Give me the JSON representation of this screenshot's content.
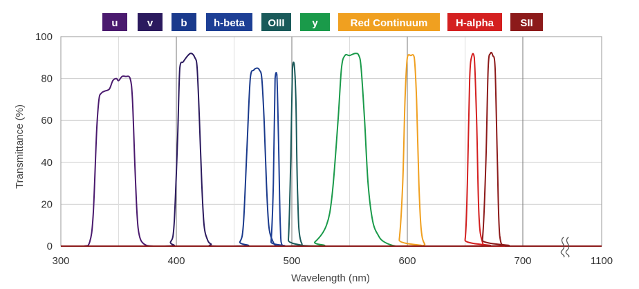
{
  "chart_data": {
    "type": "line",
    "xlabel": "Wavelength (nm)",
    "ylabel": "Transmittance (%)",
    "ylim": [
      0,
      100
    ],
    "x_ticks": [
      300,
      400,
      500,
      600,
      700,
      1100
    ],
    "y_ticks": [
      0,
      20,
      40,
      60,
      80,
      100
    ],
    "axis_break_note": "axis break between 700 and 1100",
    "grid": true,
    "legend_position": "top",
    "series": [
      {
        "name": "u",
        "color": "#4a1a6e",
        "x": [
          300,
          320,
          325,
          328,
          331,
          333,
          335,
          338,
          342,
          345,
          348,
          350,
          353,
          356,
          360,
          362,
          364,
          366,
          368,
          372,
          380,
          400,
          500,
          600,
          700,
          1100
        ],
        "y": [
          0,
          0,
          2,
          15,
          55,
          70,
          73,
          74,
          75,
          79,
          80,
          79,
          81,
          81,
          80,
          70,
          40,
          15,
          5,
          1,
          0,
          0,
          0,
          0,
          0,
          0
        ]
      },
      {
        "name": "v",
        "color": "#2b1a5e",
        "x": [
          300,
          390,
          395,
          398,
          401,
          403,
          406,
          410,
          413,
          416,
          418,
          420,
          422,
          424,
          427,
          430,
          435,
          500,
          600,
          700,
          1100
        ],
        "y": [
          0,
          0,
          2,
          10,
          50,
          85,
          88,
          91,
          92,
          90,
          85,
          60,
          30,
          10,
          3,
          1,
          0,
          0,
          0,
          0,
          0
        ]
      },
      {
        "name": "b",
        "color": "#1a3a8c",
        "x": [
          300,
          450,
          455,
          458,
          461,
          464,
          467,
          470,
          472,
          474,
          476,
          478,
          480,
          483,
          487,
          495,
          600,
          700,
          1100
        ],
        "y": [
          0,
          0,
          2,
          10,
          45,
          80,
          84,
          85,
          84,
          80,
          60,
          30,
          10,
          3,
          0,
          0,
          0,
          0,
          0
        ]
      },
      {
        "name": "h-beta",
        "color": "#1d3f95",
        "x": [
          300,
          480,
          482,
          484,
          485.5,
          487,
          488.5,
          490,
          492,
          500,
          600,
          700,
          1100
        ],
        "y": [
          0,
          0,
          2,
          30,
          80,
          82,
          50,
          10,
          0,
          0,
          0,
          0,
          0
        ]
      },
      {
        "name": "OIII",
        "color": "#1a5a5a",
        "x": [
          300,
          494,
          497,
          499,
          500.5,
          502,
          503.5,
          505,
          508,
          520,
          600,
          700,
          1100
        ],
        "y": [
          0,
          0,
          3,
          40,
          84,
          87,
          70,
          25,
          2,
          0,
          0,
          0,
          0
        ]
      },
      {
        "name": "y",
        "color": "#1a9a4a",
        "x": [
          300,
          510,
          520,
          530,
          535,
          540,
          543,
          546,
          550,
          555,
          558,
          560,
          563,
          566,
          570,
          575,
          580,
          590,
          600,
          700,
          1100
        ],
        "y": [
          0,
          0,
          2,
          10,
          25,
          60,
          85,
          91,
          91,
          92,
          91,
          85,
          60,
          30,
          12,
          5,
          2,
          0,
          0,
          0,
          0
        ]
      },
      {
        "name": "Red Continuum",
        "color": "#f0a020",
        "x": [
          300,
          590,
          593,
          596,
          598,
          600,
          603,
          606,
          608,
          610,
          612,
          615,
          620,
          700,
          1100
        ],
        "y": [
          0,
          0,
          3,
          30,
          70,
          90,
          91,
          90,
          70,
          30,
          8,
          1,
          0,
          0,
          0
        ]
      },
      {
        "name": "H-alpha",
        "color": "#d42020",
        "x": [
          300,
          645,
          650,
          652,
          654,
          656,
          658,
          660,
          662,
          665,
          670,
          700,
          1100
        ],
        "y": [
          0,
          0,
          3,
          30,
          80,
          91,
          90,
          60,
          15,
          2,
          0,
          0,
          0
        ]
      },
      {
        "name": "SII",
        "color": "#8c1a1a",
        "x": [
          300,
          660,
          665,
          668,
          670,
          672,
          674,
          676,
          678,
          680,
          685,
          700,
          1100
        ],
        "y": [
          0,
          0,
          3,
          40,
          85,
          92,
          91,
          85,
          40,
          5,
          0,
          0,
          0
        ]
      }
    ]
  }
}
